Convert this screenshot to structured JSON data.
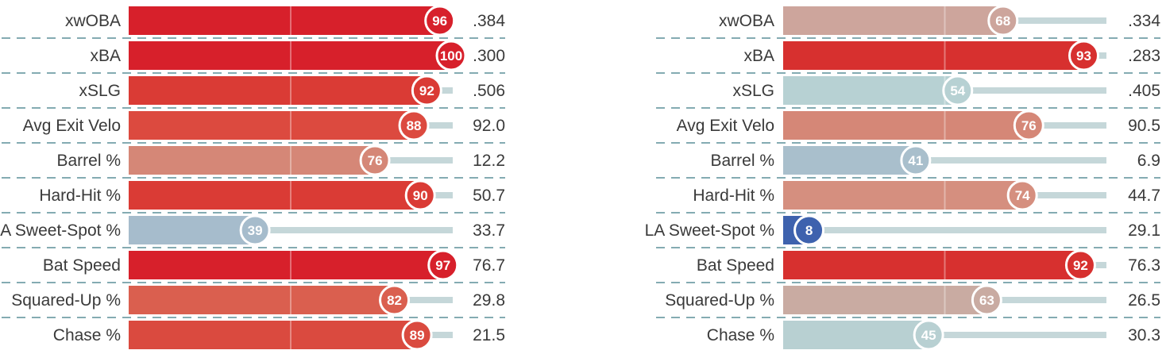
{
  "chart_data": [
    {
      "type": "bar",
      "xlim": [
        0,
        100
      ],
      "categories": [
        "xwOBA",
        "xBA",
        "xSLG",
        "Avg Exit Velo",
        "Barrel %",
        "Hard-Hit %",
        "LA Sweet-Spot %",
        "Bat Speed",
        "Squared-Up %",
        "Chase %"
      ],
      "percentiles": [
        96,
        100,
        92,
        88,
        76,
        90,
        39,
        97,
        82,
        89
      ],
      "percentile_labels": [
        "96",
        "100",
        "92",
        "88",
        "76",
        "90",
        "39",
        "97",
        "82",
        "89"
      ],
      "values": [
        ".384",
        ".300",
        ".506",
        "92.0",
        "12.2",
        "50.7",
        "33.7",
        "76.7",
        "29.8",
        "21.5"
      ],
      "colors": [
        "#d7202b",
        "#d7202b",
        "#da3b35",
        "#dc4a3f",
        "#d58777",
        "#da3b35",
        "#a6bccc",
        "#d7202b",
        "#da5f4f",
        "#da4a3f"
      ]
    },
    {
      "type": "bar",
      "xlim": [
        0,
        100
      ],
      "categories": [
        "xwOBA",
        "xBA",
        "xSLG",
        "Avg Exit Velo",
        "Barrel %",
        "Hard-Hit %",
        "LA Sweet-Spot %",
        "Bat Speed",
        "Squared-Up %",
        "Chase %"
      ],
      "percentiles": [
        68,
        93,
        54,
        76,
        41,
        74,
        8,
        92,
        63,
        45
      ],
      "percentile_labels": [
        "68",
        "93",
        "54",
        "76",
        "41",
        "74",
        "8",
        "92",
        "63",
        "45"
      ],
      "values": [
        ".334",
        ".283",
        ".405",
        "90.5",
        "6.9",
        "44.7",
        "29.1",
        "76.3",
        "26.5",
        "30.3"
      ],
      "colors": [
        "#cda59c",
        "#d7302f",
        "#b7d1d3",
        "#d58777",
        "#a9bfcc",
        "#d58f7f",
        "#3e62ae",
        "#d7302f",
        "#c9aba2",
        "#b8d0d2"
      ]
    }
  ]
}
